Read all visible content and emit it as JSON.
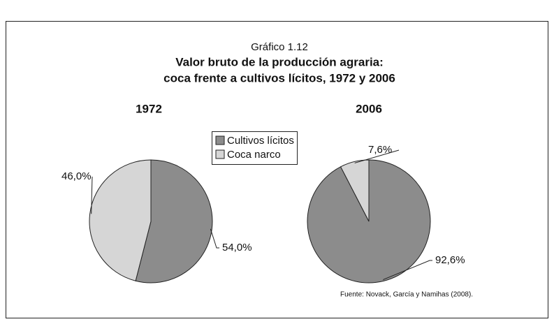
{
  "header": {
    "kicker": "Gráfico 1.12",
    "title_lines": [
      "Valor bruto de la producción agraria:",
      "coca frente a cultivos lícitos, 1972 y 2006"
    ]
  },
  "legend": {
    "labels": [
      "Cultivos lícitos",
      "Coca narco"
    ],
    "colors": [
      "#8c8c8c",
      "#d6d6d6"
    ]
  },
  "chart_data": [
    {
      "type": "pie",
      "title": "1972",
      "values": [
        54.0,
        46.0
      ],
      "value_labels": [
        "54,0%",
        "46,0%"
      ]
    },
    {
      "type": "pie",
      "title": "2006",
      "values": [
        92.6,
        7.6
      ],
      "value_labels": [
        "92,6%",
        "7,6%"
      ]
    }
  ],
  "source": "Fuente: Novack, García y Namihas (2008)."
}
